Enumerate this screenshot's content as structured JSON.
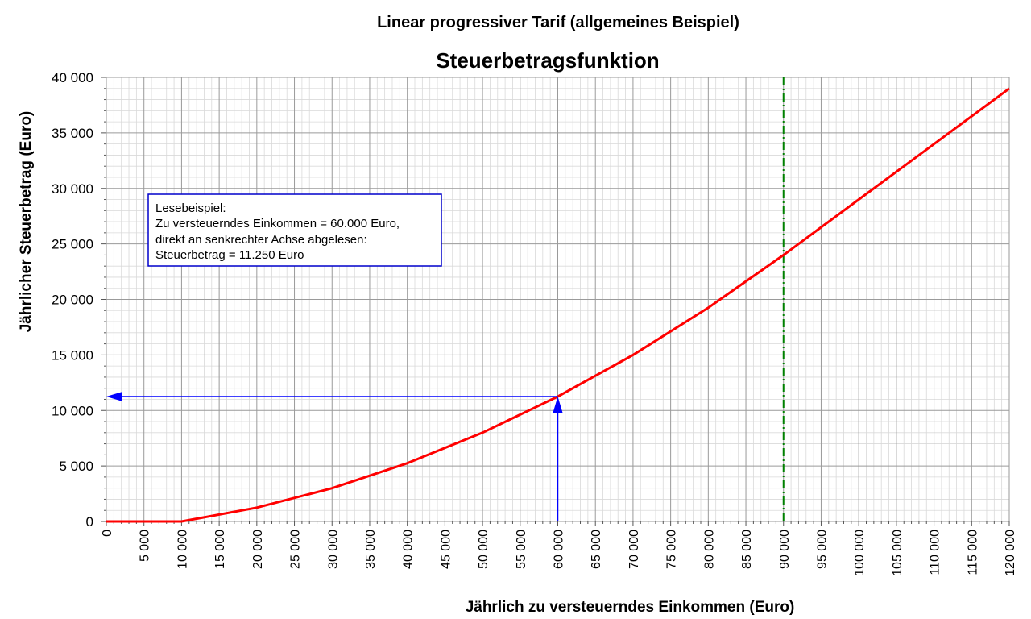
{
  "chart_data": {
    "type": "line",
    "supertitle": "Linear progressiver Tarif (allgemeines Beispiel)",
    "title": "Steuerbetragsfunktion",
    "xlabel": "Jährlich zu versteuerndes Einkommen (Euro)",
    "ylabel": "Jährlicher Steuerbetrag (Euro)",
    "xlim": [
      0,
      120000
    ],
    "ylim": [
      0,
      40000
    ],
    "x_ticks": [
      0,
      5000,
      10000,
      15000,
      20000,
      25000,
      30000,
      35000,
      40000,
      45000,
      50000,
      55000,
      60000,
      65000,
      70000,
      75000,
      80000,
      85000,
      90000,
      95000,
      100000,
      105000,
      110000,
      115000,
      120000
    ],
    "x_tick_labels": [
      "0",
      "5 000",
      "10 000",
      "15 000",
      "20 000",
      "25 000",
      "30 000",
      "35 000",
      "40 000",
      "45 000",
      "50 000",
      "55 000",
      "60 000",
      "65 000",
      "70 000",
      "75 000",
      "80 000",
      "85 000",
      "90 000",
      "95 000",
      "100 000",
      "105 000",
      "110 000",
      "115 000",
      "120 000"
    ],
    "y_ticks": [
      0,
      5000,
      10000,
      15000,
      20000,
      25000,
      30000,
      35000,
      40000
    ],
    "y_tick_labels": [
      "0",
      "5 000",
      "10 000",
      "15 000",
      "20 000",
      "25 000",
      "30 000",
      "35 000",
      "40 000"
    ],
    "grid": true,
    "series": [
      {
        "color": "#ff0000",
        "x": [
          0,
          10000,
          20000,
          30000,
          40000,
          50000,
          60000,
          70000,
          80000,
          90000,
          100000,
          110000,
          120000
        ],
        "y": [
          0,
          0,
          1250,
          3000,
          5250,
          8000,
          11250,
          15000,
          19250,
          24000,
          29000,
          34000,
          39000
        ]
      }
    ],
    "vertical_line": {
      "x": 90000,
      "color": "#008000",
      "style": "dash-dot"
    },
    "reading_example": {
      "x": 60000,
      "y": 11250,
      "color": "#0000ff"
    },
    "annotation": {
      "lines": [
        "Lesebeispiel:",
        "Zu versteuerndes Einkommen = 60.000 Euro,",
        "direkt an senkrechter Achse abgelesen:",
        "Steuerbetrag = 11.250 Euro"
      ],
      "border_color": "#0000cc"
    }
  }
}
